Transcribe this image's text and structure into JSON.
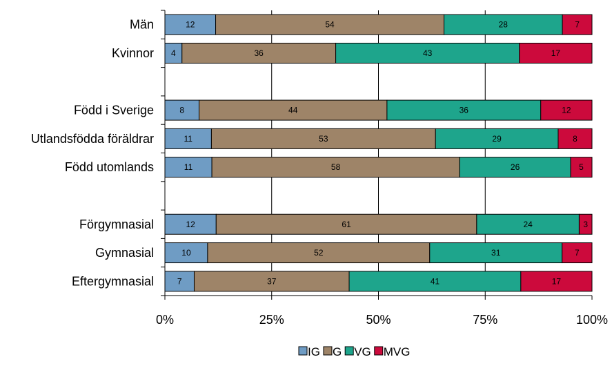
{
  "chart_data": {
    "type": "bar",
    "orientation": "horizontal",
    "stacked": "percent",
    "categories": [
      "Män",
      "Kvinnor",
      "",
      "Född i Sverige",
      "Utlandsfödda föräldrar",
      "Född utomlands",
      "",
      "Förgymnasial",
      "Gymnasial",
      "Eftergymnasial"
    ],
    "series": [
      {
        "name": "IG",
        "color": "#6f9cc4",
        "values": [
          12,
          4,
          0,
          8,
          11,
          11,
          0,
          12,
          10,
          7
        ]
      },
      {
        "name": "G",
        "color": "#9e8468",
        "values": [
          54,
          36,
          0,
          44,
          53,
          58,
          0,
          61,
          52,
          37
        ]
      },
      {
        "name": "VG",
        "color": "#1ea58c",
        "values": [
          28,
          43,
          0,
          36,
          29,
          26,
          0,
          24,
          31,
          41
        ]
      },
      {
        "name": "MVG",
        "color": "#cc0a3c",
        "values": [
          7,
          17,
          0,
          12,
          8,
          5,
          0,
          3,
          7,
          17
        ]
      }
    ],
    "x_ticks": [
      "0%",
      "25%",
      "50%",
      "75%",
      "100%"
    ],
    "xlim": [
      0,
      100
    ],
    "grid": "vertical",
    "legend": "bottom-center",
    "title": "",
    "xlabel": "",
    "ylabel": ""
  }
}
